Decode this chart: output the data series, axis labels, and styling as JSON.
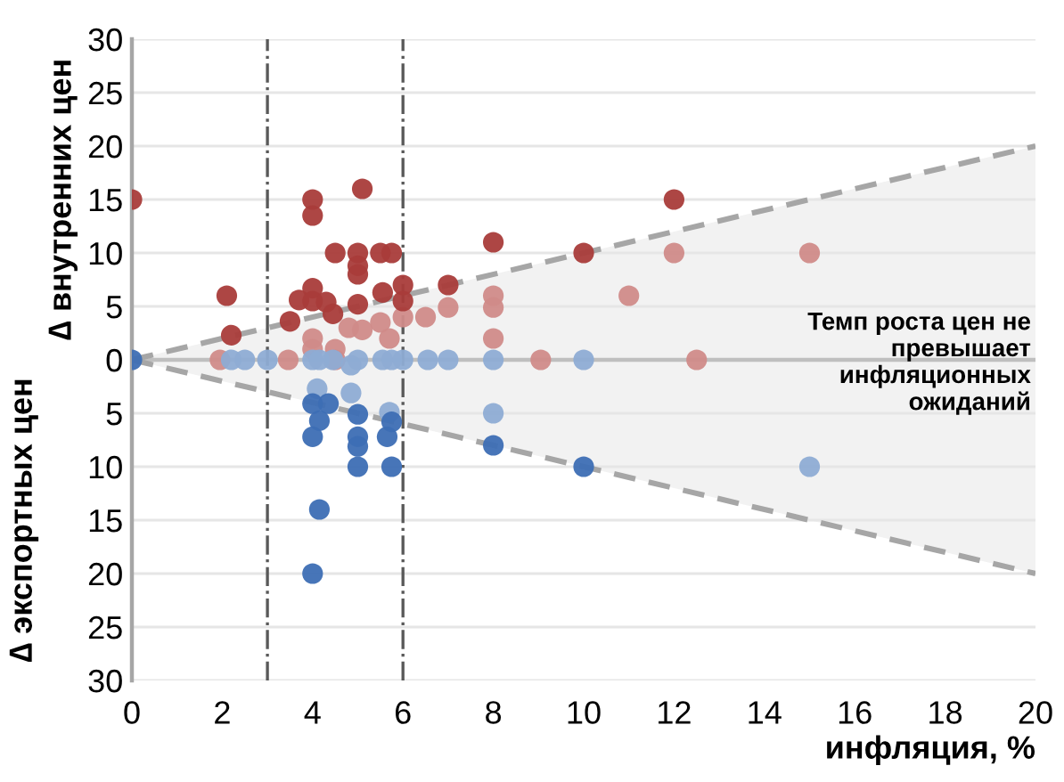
{
  "chart_data": {
    "type": "scatter",
    "xlabel": "инфляция, %",
    "ylabel": "∆ внутренних цен",
    "annotations": [
      "Темп роста цен не\nпревышает\nинфляционных\nожиданий",
      "∆ экспортных цен"
    ],
    "xlim": [
      0,
      20
    ],
    "xticks": [
      0,
      2,
      4,
      6,
      8,
      10,
      12,
      14,
      16,
      18,
      20
    ],
    "ylim": [
      -30,
      30
    ],
    "yticks": [
      {
        "value": -30,
        "label": "30"
      },
      {
        "value": -25,
        "label": "25"
      },
      {
        "value": -20,
        "label": "20"
      },
      {
        "value": -15,
        "label": "15"
      },
      {
        "value": -10,
        "label": "10"
      },
      {
        "value": -5,
        "label": "5"
      },
      0,
      5,
      10,
      15,
      20,
      25,
      30
    ],
    "grid": "y",
    "marker": "circle",
    "ref_lines": [
      {
        "axis": "y",
        "value": 0,
        "color": "#bfbfbf",
        "line_style": "solid"
      },
      {
        "axis": "x",
        "value": 3,
        "color": "#595959",
        "line_style": "dashdot"
      },
      {
        "axis": "x",
        "value": 6,
        "color": "#595959",
        "line_style": "dashdot"
      }
    ],
    "series": [
      {
        "type": "line",
        "color": "#a6a6a6",
        "line_style": "dashed",
        "marker": "none",
        "x": [
          0,
          20
        ],
        "values": [
          0,
          20
        ],
        "lower": [
          0,
          -20
        ],
        "upper": [
          0,
          20
        ]
      },
      {
        "type": "line",
        "color": "#a6a6a6",
        "line_style": "dashed",
        "marker": "none",
        "x": [
          0,
          20
        ],
        "values": [
          0,
          -20
        ]
      },
      {
        "color": "#d08b89",
        "x": [
          1.95,
          3.46,
          4.5,
          9.05,
          12.5,
          4,
          4.5,
          4.8,
          5.5,
          5.7,
          4,
          5.1,
          6,
          6.5,
          7,
          8,
          8,
          8,
          11,
          12,
          15
        ],
        "values": [
          0,
          0,
          0,
          0,
          0,
          2,
          1,
          3,
          3.5,
          2,
          1,
          2.8,
          4,
          4,
          4.9,
          2,
          4.9,
          6,
          6,
          10,
          10
        ]
      },
      {
        "color": "#8eacd4",
        "x": [
          2.2,
          2.5,
          3,
          4,
          4.15,
          4.45,
          4.85,
          5,
          5.55,
          5.75,
          6,
          6.55,
          7,
          8,
          10,
          4.1,
          4.85,
          5.7,
          8,
          15
        ],
        "values": [
          0,
          0,
          0,
          0,
          0,
          0,
          -0.5,
          0,
          0,
          0,
          0,
          0,
          0,
          0,
          0,
          -2.7,
          -3.1,
          -4.9,
          -5,
          -10
        ]
      },
      {
        "color": "#a93c3a",
        "x": [
          0,
          4,
          4,
          5.1,
          4.5,
          5,
          5,
          5,
          5.5,
          5.75,
          2.1,
          2.2,
          3.5,
          3.7,
          4,
          4,
          4.3,
          4.45,
          5,
          5.55,
          6,
          6,
          7,
          8,
          10,
          12
        ],
        "values": [
          15,
          15,
          13.5,
          16,
          10,
          10,
          8.8,
          8,
          10,
          10,
          6,
          2.3,
          3.6,
          5.6,
          6.7,
          5.5,
          5.4,
          4.3,
          5.2,
          6.3,
          7,
          5.5,
          7,
          11,
          10,
          15
        ]
      },
      {
        "color": "#3d6eb4",
        "x": [
          0,
          4,
          4.35,
          4.15,
          4,
          5,
          5,
          5,
          5,
          5.65,
          5.75,
          5.75,
          4.15,
          4,
          8,
          10
        ],
        "values": [
          0,
          -4.1,
          -4.1,
          -5.7,
          -7.2,
          -5.1,
          -7.2,
          -8.1,
          -10,
          -7.2,
          -5.8,
          -10,
          -14,
          -20,
          -8,
          -10
        ]
      }
    ]
  }
}
